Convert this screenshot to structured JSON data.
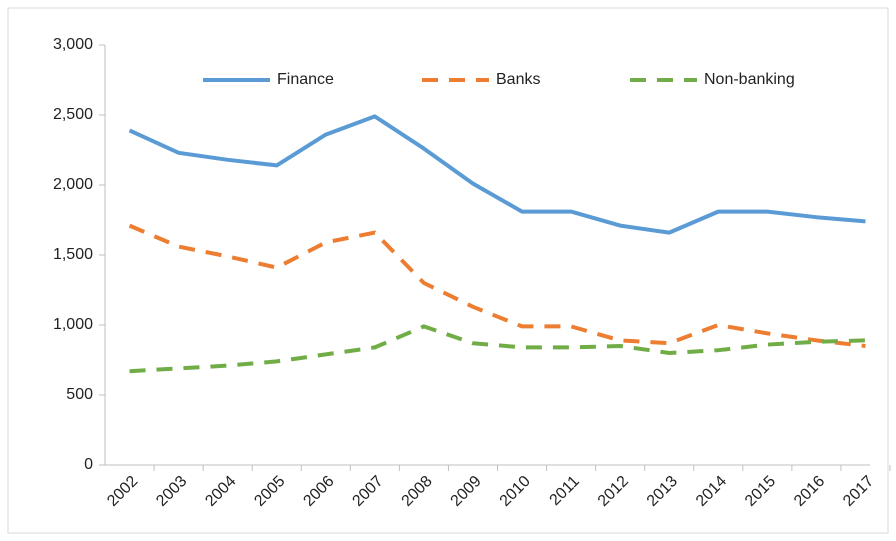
{
  "chart_data": {
    "type": "line",
    "categories": [
      "2002",
      "2003",
      "2004",
      "2005",
      "2006",
      "2007",
      "2008",
      "2009",
      "2010",
      "2011",
      "2012",
      "2013",
      "2014",
      "2015",
      "2016",
      "2017"
    ],
    "series": [
      {
        "name": "Finance",
        "color": "#5b9bd5",
        "dash": false,
        "values": [
          2390,
          2230,
          2180,
          2140,
          2360,
          2490,
          2260,
          2010,
          1810,
          1810,
          1710,
          1660,
          1810,
          1810,
          1770,
          1740
        ]
      },
      {
        "name": "Banks",
        "color": "#ed7d31",
        "dash": true,
        "values": [
          1710,
          1560,
          1490,
          1410,
          1590,
          1660,
          1300,
          1130,
          990,
          990,
          890,
          870,
          1000,
          940,
          890,
          850
        ]
      },
      {
        "name": "Non-banking",
        "color": "#70ad47",
        "dash": true,
        "values": [
          670,
          690,
          710,
          740,
          790,
          840,
          990,
          870,
          840,
          840,
          850,
          800,
          820,
          860,
          880,
          890
        ]
      }
    ],
    "ylim": [
      0,
      3000
    ],
    "yticks": [
      0,
      500,
      {
        "value": 1000,
        "label": "1,000"
      },
      {
        "value": 1500,
        "label": "1,500"
      },
      {
        "value": 2000,
        "label": "2,000"
      },
      {
        "value": 2500,
        "label": "2,500"
      },
      {
        "value": 3000,
        "label": "3,000"
      }
    ],
    "grid": false,
    "legend": "top"
  }
}
